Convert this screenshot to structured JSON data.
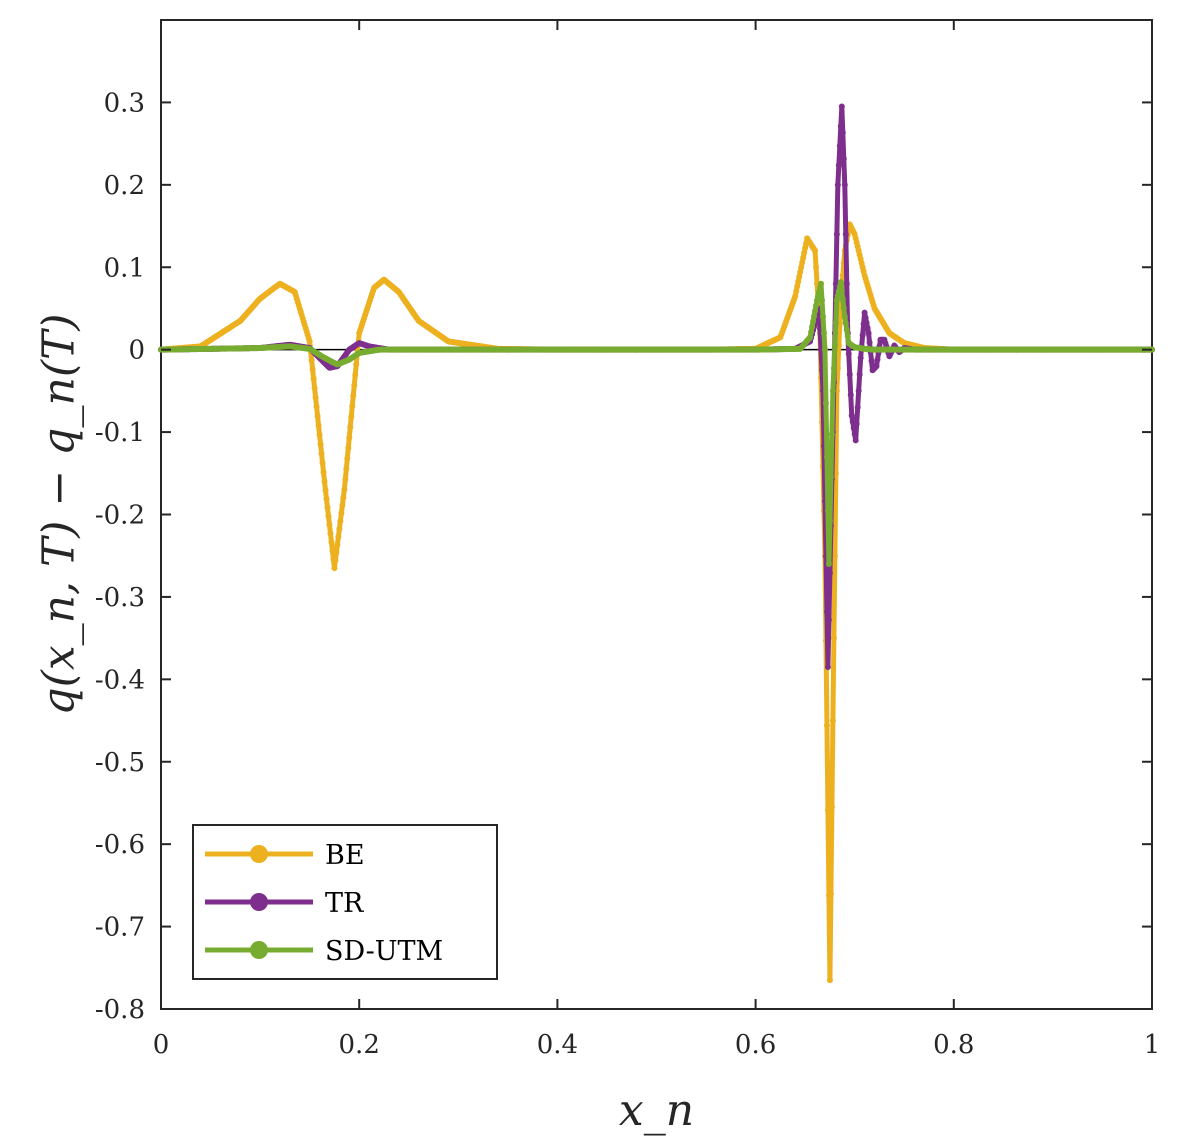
{
  "chart_data": {
    "type": "line",
    "title": "",
    "xlabel": "x_n",
    "ylabel": "q(x_n, T) − q_n(T)",
    "xlim": [
      0,
      1
    ],
    "ylim": [
      -0.8,
      0.4
    ],
    "xticks": [
      0,
      0.2,
      0.4,
      0.6,
      0.8,
      1
    ],
    "xtick_labels": [
      "0",
      "0.2",
      "0.4",
      "0.6",
      "0.8",
      "1"
    ],
    "yticks": [
      -0.8,
      -0.7,
      -0.6,
      -0.5,
      -0.4,
      -0.3,
      -0.2,
      -0.1,
      0,
      0.1,
      0.2,
      0.3
    ],
    "ytick_labels": [
      "-0.8",
      "-0.7",
      "-0.6",
      "-0.5",
      "-0.4",
      "-0.3",
      "-0.2",
      "-0.1",
      "0",
      "0.1",
      "0.2",
      "0.3"
    ],
    "grid": false,
    "zero_line": true,
    "legend_position": "bottom-left",
    "series": [
      {
        "name": "BE",
        "color": "#EDB120",
        "x": [
          0,
          0.04,
          0.08,
          0.1,
          0.12,
          0.135,
          0.15,
          0.165,
          0.175,
          0.185,
          0.2,
          0.215,
          0.225,
          0.24,
          0.26,
          0.29,
          0.34,
          0.4,
          0.55,
          0.6,
          0.625,
          0.64,
          0.652,
          0.66,
          0.665,
          0.67,
          0.675,
          0.678,
          0.682,
          0.686,
          0.69,
          0.695,
          0.7,
          0.71,
          0.72,
          0.735,
          0.75,
          0.77,
          0.8,
          1
        ],
        "y": [
          0,
          0.004,
          0.035,
          0.062,
          0.08,
          0.07,
          0.01,
          -0.16,
          -0.265,
          -0.17,
          0.02,
          0.075,
          0.085,
          0.07,
          0.035,
          0.01,
          0.001,
          0,
          0,
          0.001,
          0.015,
          0.065,
          0.135,
          0.12,
          0.02,
          -0.25,
          -0.765,
          -0.45,
          -0.05,
          0.06,
          0.12,
          0.152,
          0.14,
          0.09,
          0.05,
          0.02,
          0.008,
          0.002,
          0,
          0
        ]
      },
      {
        "name": "TR",
        "color": "#7E2F8E",
        "x": [
          0,
          0.1,
          0.13,
          0.15,
          0.16,
          0.17,
          0.178,
          0.19,
          0.2,
          0.21,
          0.23,
          0.3,
          0.6,
          0.64,
          0.655,
          0.664,
          0.668,
          0.673,
          0.678,
          0.683,
          0.687,
          0.69,
          0.693,
          0.697,
          0.701,
          0.706,
          0.71,
          0.714,
          0.718,
          0.722,
          0.726,
          0.73,
          0.735,
          0.74,
          0.745,
          0.75,
          0.76,
          0.8,
          1
        ],
        "y": [
          0,
          0.002,
          0.006,
          0.002,
          -0.01,
          -0.022,
          -0.02,
          0,
          0.008,
          0.004,
          0,
          0,
          0,
          0.001,
          0.01,
          0.05,
          -0.05,
          -0.385,
          -0.1,
          0.2,
          0.295,
          0.2,
          0.02,
          -0.08,
          -0.11,
          -0.01,
          0.045,
          0.02,
          -0.025,
          -0.02,
          0.012,
          0.012,
          -0.008,
          0.005,
          -0.003,
          0.002,
          0,
          0,
          0
        ]
      },
      {
        "name": "SD-UTM",
        "color": "#77AC30",
        "x": [
          0,
          0.1,
          0.13,
          0.15,
          0.165,
          0.178,
          0.19,
          0.2,
          0.22,
          0.3,
          0.6,
          0.645,
          0.655,
          0.662,
          0.666,
          0.67,
          0.674,
          0.678,
          0.682,
          0.686,
          0.69,
          0.694,
          0.7,
          0.71,
          0.72,
          0.74,
          0.8,
          1
        ],
        "y": [
          0,
          0.002,
          0.004,
          0.001,
          -0.01,
          -0.018,
          -0.012,
          -0.004,
          0,
          0,
          0,
          0.001,
          0.015,
          0.06,
          0.08,
          0.0,
          -0.26,
          -0.05,
          0.06,
          0.082,
          0.04,
          0.008,
          0.003,
          0.001,
          0,
          0,
          0,
          0
        ]
      }
    ]
  }
}
